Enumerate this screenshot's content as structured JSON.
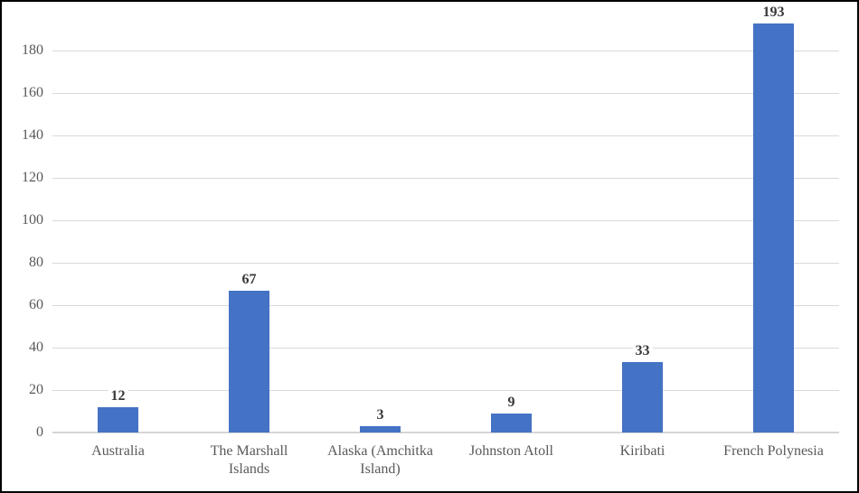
{
  "chart_data": {
    "type": "bar",
    "title": "",
    "xlabel": "",
    "ylabel": "",
    "categories": [
      "Australia",
      "The Marshall Islands",
      "Alaska (Amchitka Island)",
      "Johnston Atoll",
      "Kiribati",
      "French Polynesia"
    ],
    "values": [
      12,
      67,
      3,
      9,
      33,
      193
    ],
    "data_labels": [
      "12",
      "67",
      "3",
      "9",
      "33",
      "193"
    ],
    "yticks": [
      0,
      20,
      40,
      60,
      80,
      100,
      120,
      140,
      160,
      180
    ],
    "ylim": [
      0,
      203
    ],
    "grid": true,
    "legend_position": "none"
  },
  "style": {
    "bar_color": "#4472C4",
    "gridline_color": "#D9D9D9",
    "axis_line_color": "#D5D5D5",
    "tick_label_color": "#595959",
    "category_label_color": "#595959",
    "value_label_color": "#383838",
    "border_color": "#000000",
    "background_color": "#FFFFFF"
  }
}
